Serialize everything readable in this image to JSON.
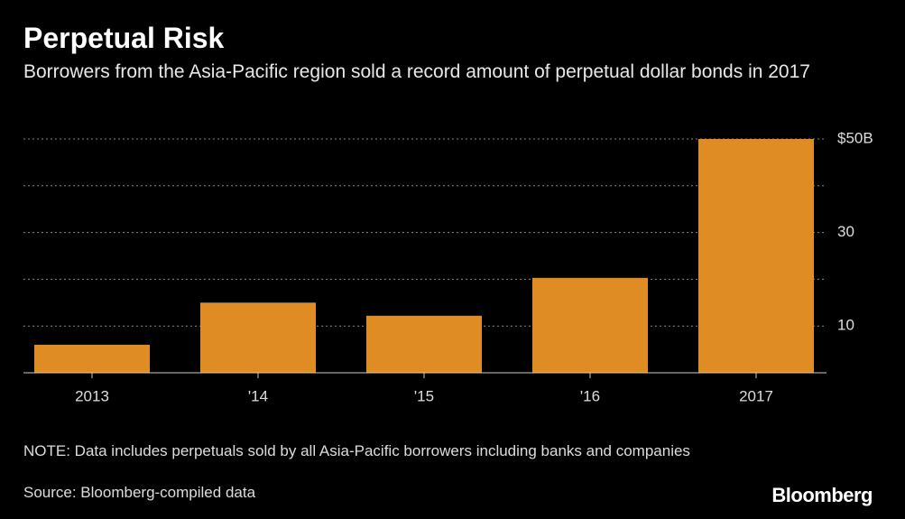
{
  "chart_data": {
    "type": "bar",
    "title": "Perpetual Risk",
    "subtitle": "Borrowers from the Asia-Pacific region sold a record amount of perpetual dollar bonds in 2017",
    "categories": [
      "2013",
      "'14",
      "'15",
      "'16",
      "2017"
    ],
    "values": [
      6,
      15,
      12.2,
      20.3,
      50
    ],
    "color": "#e08c24",
    "ylim": [
      0,
      50
    ],
    "yticks": [
      10,
      30,
      {
        "value": 50,
        "label": "$50B"
      }
    ],
    "minor_yticks": [
      20,
      40
    ],
    "grid": true,
    "note": "NOTE: Data includes perpetuals sold by all Asia-Pacific borrowers including banks and companies",
    "source": "Source: Bloomberg-compiled data",
    "brand": "Bloomberg"
  }
}
